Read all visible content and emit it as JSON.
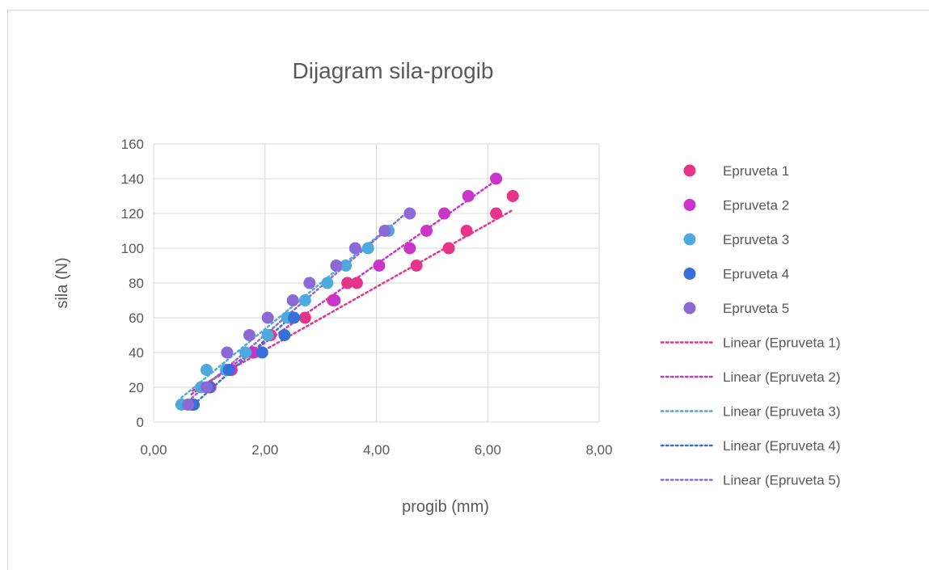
{
  "chart_data": {
    "type": "scatter",
    "title": "Dijagram sila-progib",
    "xlabel": "progib (mm)",
    "ylabel": "sila (N)",
    "xlim": [
      0,
      8
    ],
    "ylim": [
      0,
      160
    ],
    "xticks": [
      "0,00",
      "2,00",
      "4,00",
      "6,00",
      "8,00"
    ],
    "yticks": [
      "0",
      "20",
      "40",
      "60",
      "80",
      "100",
      "120",
      "140",
      "160"
    ],
    "grid": true,
    "legend_position": "right",
    "series": [
      {
        "name": "Epruveta 1",
        "color": "#e5348a",
        "points": [
          [
            0.7,
            10
          ],
          [
            1.02,
            20
          ],
          [
            1.4,
            30
          ],
          [
            1.8,
            40
          ],
          [
            2.1,
            50
          ],
          [
            2.45,
            60
          ],
          [
            2.72,
            60
          ],
          [
            3.22,
            70
          ],
          [
            3.48,
            80
          ],
          [
            3.65,
            80
          ],
          [
            4.72,
            90
          ],
          [
            5.3,
            100
          ],
          [
            5.62,
            110
          ],
          [
            6.15,
            120
          ],
          [
            6.45,
            130
          ]
        ]
      },
      {
        "name": "Epruveta 2",
        "color": "#c935c9",
        "points": [
          [
            0.68,
            10
          ],
          [
            1.0,
            20
          ],
          [
            1.38,
            30
          ],
          [
            1.78,
            40
          ],
          [
            2.05,
            50
          ],
          [
            2.5,
            60
          ],
          [
            3.25,
            70
          ],
          [
            4.05,
            90
          ],
          [
            4.6,
            100
          ],
          [
            4.9,
            110
          ],
          [
            5.22,
            120
          ],
          [
            5.65,
            130
          ],
          [
            6.15,
            140
          ]
        ]
      },
      {
        "name": "Epruveta 3",
        "color": "#4eaadc",
        "points": [
          [
            0.5,
            10
          ],
          [
            0.85,
            20
          ],
          [
            0.95,
            30
          ],
          [
            1.3,
            30
          ],
          [
            1.65,
            40
          ],
          [
            2.05,
            50
          ],
          [
            2.4,
            60
          ],
          [
            2.72,
            70
          ],
          [
            3.12,
            80
          ],
          [
            3.45,
            90
          ],
          [
            3.85,
            100
          ],
          [
            4.22,
            110
          ]
        ]
      },
      {
        "name": "Epruveta 4",
        "color": "#3570d8",
        "points": [
          [
            0.72,
            10
          ],
          [
            1.0,
            20
          ],
          [
            1.35,
            30
          ],
          [
            1.95,
            40
          ],
          [
            2.35,
            50
          ],
          [
            2.52,
            60
          ]
        ]
      },
      {
        "name": "Epruveta 5",
        "color": "#8b6ad6",
        "points": [
          [
            0.62,
            10
          ],
          [
            0.95,
            20
          ],
          [
            1.32,
            40
          ],
          [
            1.72,
            50
          ],
          [
            2.05,
            60
          ],
          [
            2.5,
            70
          ],
          [
            2.8,
            80
          ],
          [
            3.28,
            90
          ],
          [
            3.62,
            100
          ],
          [
            4.15,
            110
          ],
          [
            4.6,
            120
          ]
        ]
      }
    ],
    "trendlines": [
      {
        "name": "Linear (Epruveta 1)",
        "color": "#e5348a",
        "from": [
          0.7,
          18
        ],
        "to": [
          6.45,
          122
        ]
      },
      {
        "name": "Linear (Epruveta 2)",
        "color": "#c935c9",
        "from": [
          0.68,
          16
        ],
        "to": [
          6.15,
          139
        ]
      },
      {
        "name": "Linear (Epruveta 3)",
        "color": "#4eaadc",
        "from": [
          0.5,
          14
        ],
        "to": [
          4.22,
          112
        ]
      },
      {
        "name": "Linear (Epruveta 4)",
        "color": "#3570d8",
        "from": [
          0.72,
          10
        ],
        "to": [
          2.52,
          62
        ]
      },
      {
        "name": "Linear (Epruveta 5)",
        "color": "#8b6ad6",
        "from": [
          0.62,
          12
        ],
        "to": [
          4.6,
          122
        ]
      }
    ]
  }
}
